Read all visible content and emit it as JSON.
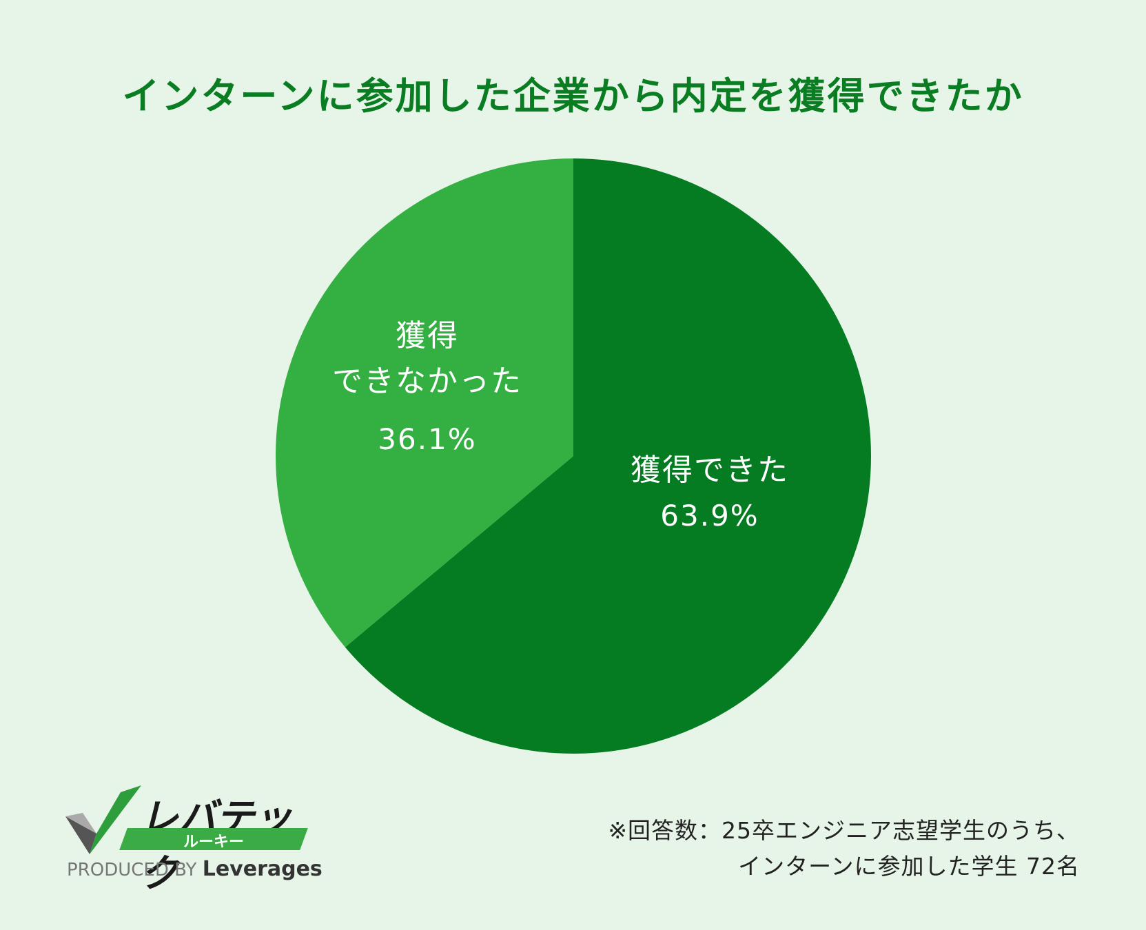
{
  "chart_data": {
    "type": "pie",
    "title": "インターンに参加した企業から内定を獲得できたか",
    "slices": [
      {
        "label_lines": [
          "獲得できた"
        ],
        "value": 63.9,
        "value_label": "63.9%",
        "color": "#067c22"
      },
      {
        "label_lines": [
          "獲得",
          "できなかった"
        ],
        "value": 36.1,
        "value_label": "36.1%",
        "color": "#34b042"
      }
    ],
    "start": "12 o'clock",
    "direction": "clockwise",
    "legend": "none"
  },
  "footnote": {
    "line1": "※回答数：25卒エンジニア志望学生のうち、",
    "line2": "インターンに参加した学生 72名"
  },
  "logo": {
    "brand": "レバテック",
    "sub": "ルーキー",
    "produced_by": "PRODUCED BY",
    "company": "Leverages",
    "icon": "check-mark-icon",
    "accent": "#3aab45"
  }
}
